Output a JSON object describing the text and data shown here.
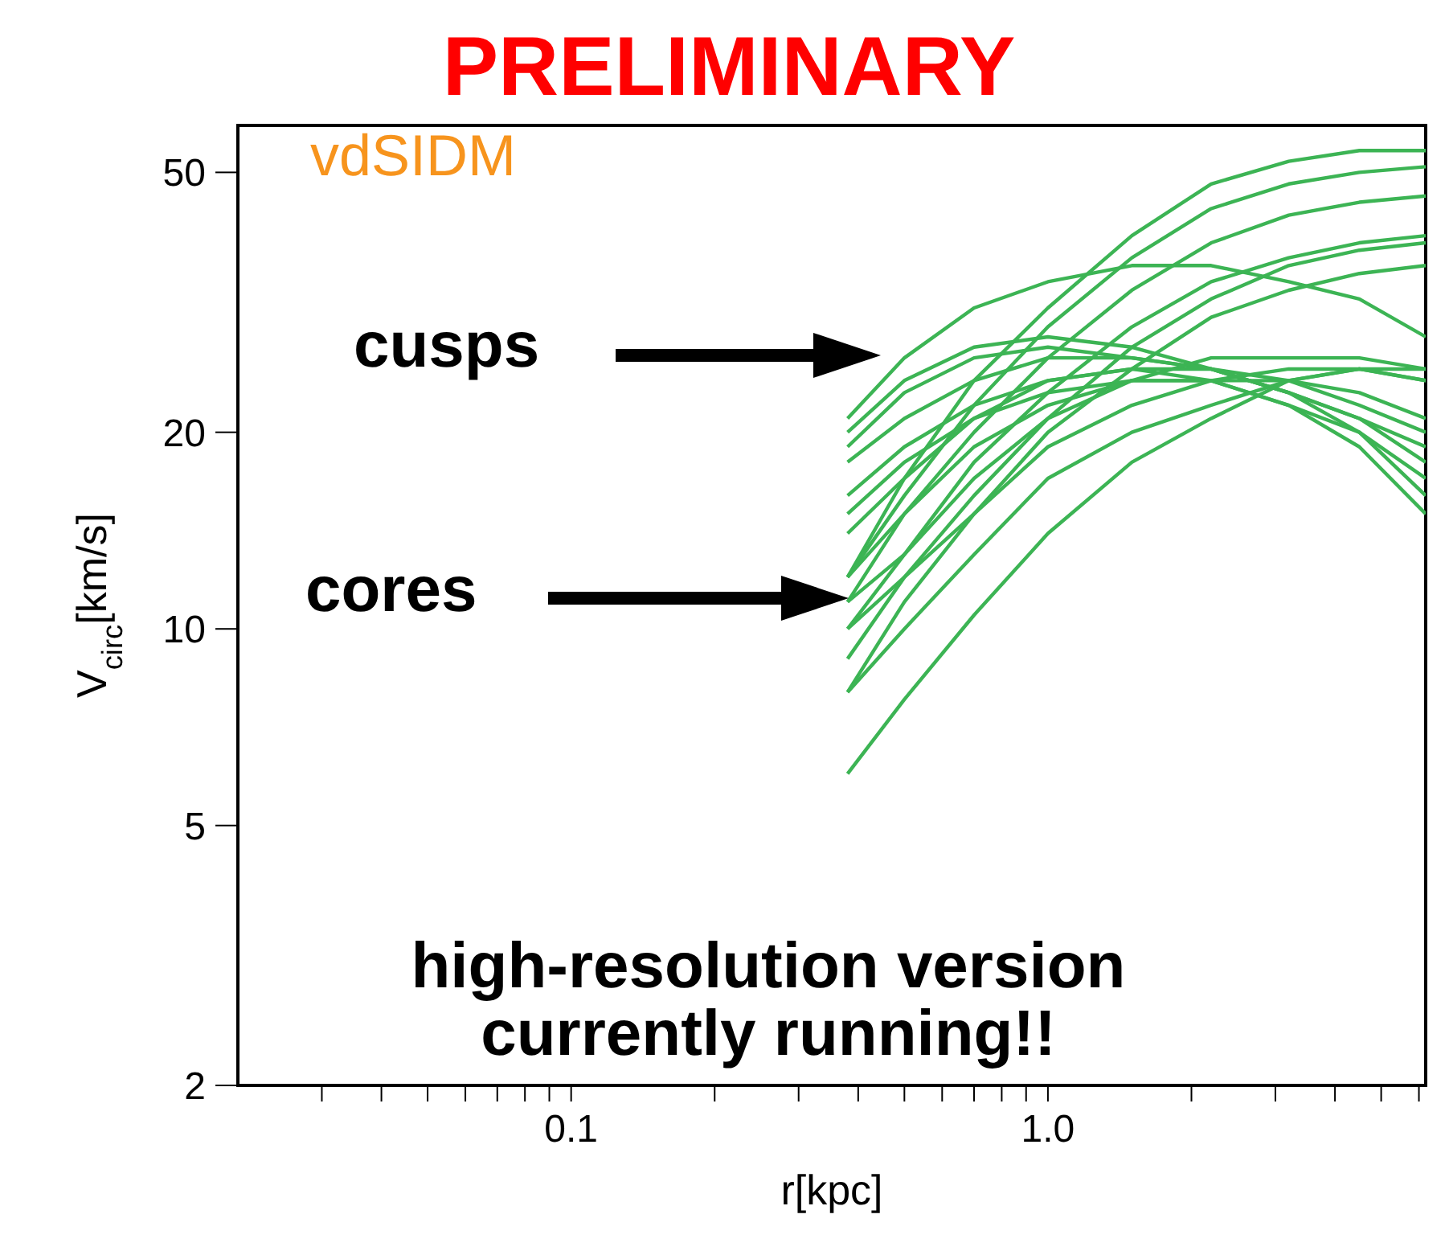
{
  "chart_data": {
    "type": "line",
    "title": "PRELIMINARY",
    "xlabel": "r[kpc]",
    "ylabel": "V$_{circ}$[km/s]",
    "log": "xy",
    "grid": false,
    "legend": false,
    "marker": "none",
    "line_style": "solid",
    "annotations": [
      "vdSIDM",
      "cusps",
      "cores",
      "high-resolution version currently running!!"
    ],
    "x": [
      0.38,
      0.5,
      0.7,
      1.0,
      1.5,
      2.2,
      3.2,
      4.5,
      6.2
    ],
    "xlim": [
      0.02,
      6.2
    ],
    "xticks": [
      {
        "value": 0.03,
        "label": null
      },
      {
        "value": 0.04,
        "label": null
      },
      {
        "value": 0.05,
        "label": null
      },
      {
        "value": 0.06,
        "label": null
      },
      {
        "value": 0.07,
        "label": null
      },
      {
        "value": 0.08,
        "label": null
      },
      {
        "value": 0.09,
        "label": null
      },
      {
        "value": 0.1,
        "label": "0.1"
      },
      {
        "value": 0.2,
        "label": null
      },
      {
        "value": 0.3,
        "label": null
      },
      {
        "value": 0.4,
        "label": null
      },
      {
        "value": 0.5,
        "label": null
      },
      {
        "value": 0.6,
        "label": null
      },
      {
        "value": 0.7,
        "label": null
      },
      {
        "value": 0.8,
        "label": null
      },
      {
        "value": 0.9,
        "label": null
      },
      {
        "value": 1,
        "label": "1.0"
      },
      {
        "value": 2,
        "label": null
      },
      {
        "value": 3,
        "label": null
      },
      {
        "value": 4,
        "label": null
      },
      {
        "value": 5,
        "label": null
      },
      {
        "value": 6,
        "label": null
      }
    ],
    "ylim": [
      2,
      59
    ],
    "yticks": [
      2,
      5,
      10,
      20,
      50
    ],
    "series": [
      {
        "color": "#3cb454",
        "values": [
          12,
          17,
          24,
          31,
          40,
          48,
          52,
          54,
          54
        ]
      },
      {
        "color": "#3cb454",
        "values": [
          12,
          16,
          22,
          29,
          37,
          44,
          48,
          50,
          51
        ]
      },
      {
        "color": "#3cb454",
        "values": [
          11,
          15,
          20,
          26,
          33,
          39,
          43,
          45,
          46
        ]
      },
      {
        "color": "#3cb454",
        "values": [
          10,
          13,
          18,
          23,
          29,
          34,
          37,
          39,
          40
        ]
      },
      {
        "color": "#3cb454",
        "values": [
          9,
          12,
          16,
          21,
          27,
          32,
          36,
          38,
          39
        ]
      },
      {
        "color": "#3cb454",
        "values": [
          8,
          11,
          15,
          20,
          25,
          30,
          33,
          35,
          36
        ]
      },
      {
        "color": "#3cb454",
        "values": [
          21,
          26,
          31,
          34,
          36,
          36,
          34,
          32,
          28
        ]
      },
      {
        "color": "#3cb454",
        "values": [
          20,
          24,
          27,
          28,
          27,
          25,
          23,
          21,
          19
        ]
      },
      {
        "color": "#3cb454",
        "values": [
          19,
          23,
          26,
          27,
          26,
          25,
          23,
          21,
          18
        ]
      },
      {
        "color": "#3cb454",
        "values": [
          18,
          21,
          24,
          26,
          26,
          25,
          23,
          20,
          17
        ]
      },
      {
        "color": "#3cb454",
        "values": [
          16,
          19,
          22,
          24,
          25,
          24,
          22,
          20,
          16
        ]
      },
      {
        "color": "#3cb454",
        "values": [
          15,
          18,
          21,
          23,
          24,
          24,
          22,
          19,
          15
        ]
      },
      {
        "color": "#3cb454",
        "values": [
          14,
          17,
          21,
          24,
          25,
          25,
          24,
          22,
          20
        ]
      },
      {
        "color": "#3cb454",
        "values": [
          12,
          15,
          19,
          22,
          24,
          24,
          24,
          23,
          21
        ]
      },
      {
        "color": "#3cb454",
        "values": [
          11,
          13,
          17,
          21,
          24,
          26,
          26,
          26,
          25
        ]
      },
      {
        "color": "#3cb454",
        "values": [
          10,
          12,
          15,
          19,
          22,
          24,
          25,
          25,
          24
        ]
      },
      {
        "color": "#3cb454",
        "values": [
          8,
          10,
          13,
          17,
          20,
          22,
          24,
          25,
          24
        ]
      },
      {
        "color": "#3cb454",
        "values": [
          6,
          7.8,
          10.5,
          14,
          18,
          21,
          24,
          25,
          25
        ]
      }
    ]
  }
}
